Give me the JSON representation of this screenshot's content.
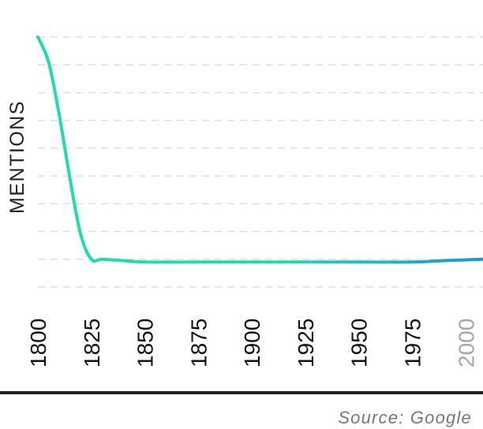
{
  "chart_data": {
    "type": "line",
    "title": "",
    "xlabel": "",
    "ylabel": "MENTIONS",
    "x_ticks": [
      {
        "label": "1800",
        "muted": false
      },
      {
        "label": "1825",
        "muted": false
      },
      {
        "label": "1850",
        "muted": false
      },
      {
        "label": "1875",
        "muted": false
      },
      {
        "label": "1900",
        "muted": false
      },
      {
        "label": "1925",
        "muted": false
      },
      {
        "label": "1950",
        "muted": false
      },
      {
        "label": "1975",
        "muted": false
      },
      {
        "label": "2000",
        "muted": true
      }
    ],
    "xlim": [
      1800,
      2008
    ],
    "ylim": [
      0,
      9
    ],
    "grid": true,
    "series": [
      {
        "x": [
          1800,
          1805,
          1810,
          1815,
          1820,
          1825,
          1830,
          1840,
          1850,
          1875,
          1900,
          1925,
          1950,
          1975,
          1990,
          2008
        ],
        "y": [
          9.0,
          8.1,
          6.2,
          3.9,
          1.9,
          1.0,
          1.0,
          0.95,
          0.9,
          0.9,
          0.9,
          0.9,
          0.9,
          0.9,
          0.95,
          1.0
        ],
        "color_start": "#1ddcae",
        "color_end": "#1a96d8"
      }
    ],
    "source": "Source: Google"
  }
}
